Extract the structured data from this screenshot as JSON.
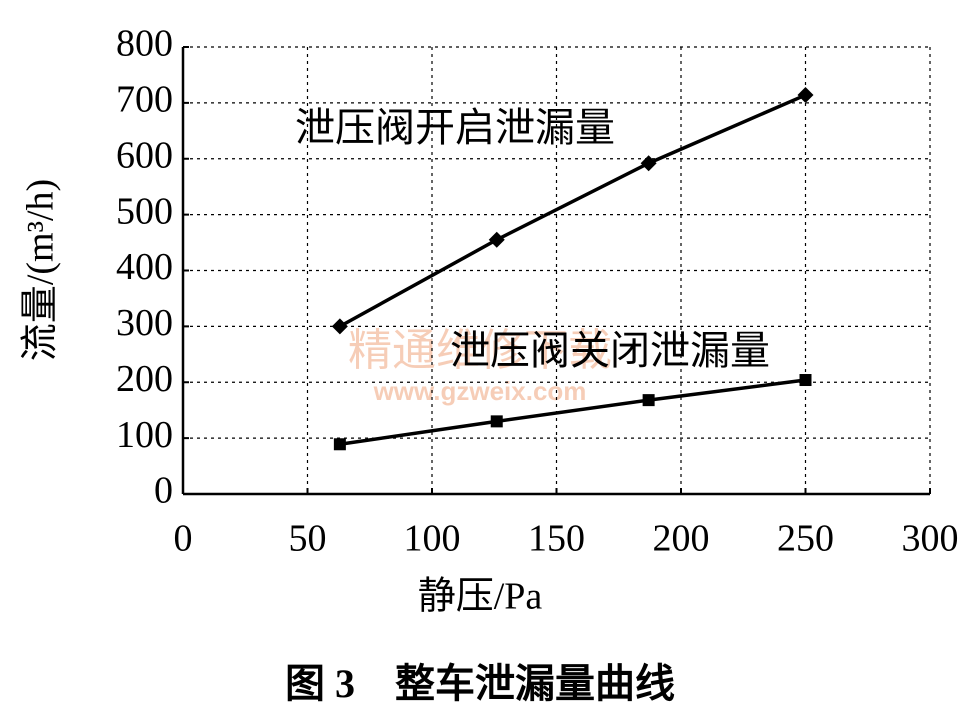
{
  "chart_data": {
    "type": "line",
    "title": "图 3　整车泄漏量曲线",
    "xlabel": "静压/Pa",
    "ylabel": "流量/(m³/h)",
    "x": [
      63,
      126,
      187,
      250
    ],
    "series": [
      {
        "name": "泄压阀开启泄漏量",
        "color": "#000000",
        "marker": "diamond",
        "values": [
          300,
          455,
          592,
          714
        ]
      },
      {
        "name": "泄压阀关闭泄漏量",
        "color": "#000000",
        "marker": "square",
        "values": [
          89,
          130,
          168,
          204
        ]
      }
    ],
    "xlim": [
      0,
      300
    ],
    "xticks": [
      0,
      50,
      100,
      150,
      200,
      250,
      300
    ],
    "ylim": [
      0,
      800
    ],
    "yticks": [
      0,
      100,
      200,
      300,
      400,
      500,
      600,
      700,
      800
    ],
    "grid": true,
    "watermark": [
      "精通维修下载",
      "www.gzweix.com"
    ]
  }
}
